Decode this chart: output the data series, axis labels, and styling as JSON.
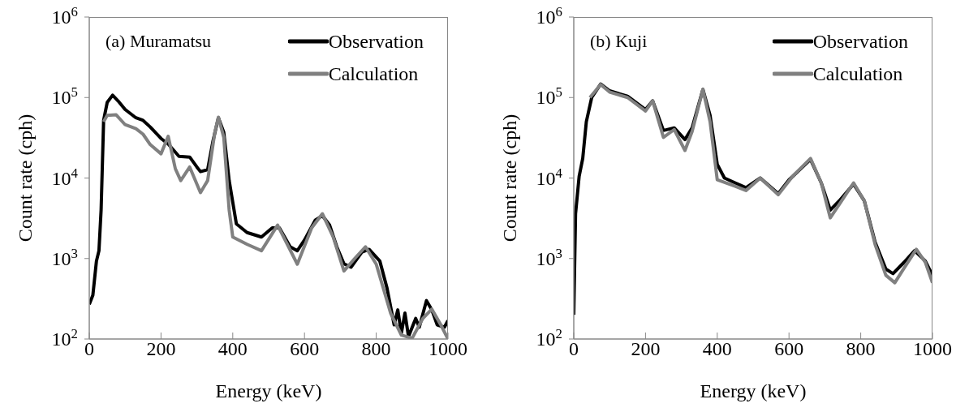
{
  "chart_data": [
    {
      "type": "line",
      "title": "(a) Muramatsu",
      "xlabel": "Energy (keV)",
      "ylabel": "Count rate (cph)",
      "log": "y",
      "legend": "top right",
      "grid": false,
      "xlim": [
        0,
        1000
      ],
      "xticks": [
        0,
        200,
        400,
        600,
        800,
        1000
      ],
      "ylim": [
        100,
        1000000
      ],
      "yticks": [
        {
          "value": 100,
          "label": "10$^{2}$"
        },
        {
          "value": 1000,
          "label": "10$^{3}$"
        },
        {
          "value": 10000,
          "label": "10$^{4}$"
        },
        {
          "value": 100000,
          "label": "10$^{5}$"
        },
        {
          "value": 1000000,
          "label": "10$^{6}$"
        }
      ],
      "series": [
        {
          "name": "Observation",
          "color": "#000000",
          "x": [
            0,
            10,
            20,
            27,
            33,
            40,
            50,
            65,
            80,
            100,
            130,
            150,
            170,
            200,
            220,
            250,
            280,
            300,
            310,
            330,
            345,
            360,
            375,
            390,
            410,
            440,
            480,
            510,
            530,
            560,
            580,
            600,
            630,
            650,
            670,
            690,
            710,
            730,
            760,
            780,
            810,
            830,
            850,
            860,
            870,
            880,
            890,
            910,
            920,
            940,
            955,
            970,
            990,
            1000
          ],
          "values": [
            270,
            350,
            930,
            1250,
            4000,
            52000,
            87000,
            107000,
            91000,
            71000,
            56000,
            52000,
            43000,
            31000,
            26500,
            18600,
            18200,
            13700,
            12000,
            12700,
            29000,
            56000,
            37000,
            9300,
            2700,
            2100,
            1850,
            2400,
            2400,
            1400,
            1250,
            1700,
            3000,
            3400,
            2600,
            1400,
            860,
            780,
            1200,
            1300,
            930,
            430,
            150,
            230,
            118,
            210,
            107,
            180,
            140,
            300,
            230,
            150,
            140,
            170
          ]
        },
        {
          "name": "Calculation",
          "color": "#808080",
          "x": [
            40,
            50,
            75,
            100,
            130,
            150,
            170,
            200,
            220,
            240,
            255,
            280,
            310,
            330,
            350,
            360,
            375,
            390,
            400,
            440,
            480,
            525,
            580,
            620,
            650,
            680,
            710,
            740,
            770,
            800,
            840,
            870,
            900,
            930,
            955,
            980,
            1000
          ],
          "values": [
            50000,
            60000,
            61000,
            46000,
            41000,
            35000,
            26000,
            20000,
            33000,
            13000,
            9300,
            13700,
            6600,
            9300,
            37000,
            57000,
            32000,
            4000,
            1850,
            1500,
            1250,
            2600,
            850,
            2400,
            3600,
            1850,
            700,
            1000,
            1400,
            850,
            210,
            112,
            102,
            180,
            235,
            150,
            100
          ]
        }
      ]
    },
    {
      "type": "line",
      "title": "(b) Kuji",
      "xlabel": "Energy (keV)",
      "ylabel": "Count rate (cph)",
      "log": "y",
      "legend": "top right",
      "grid": false,
      "xlim": [
        0,
        1000
      ],
      "xticks": [
        0,
        200,
        400,
        600,
        800,
        1000
      ],
      "ylim": [
        100,
        1000000
      ],
      "yticks": [
        {
          "value": 100,
          "label": "10$^{2}$"
        },
        {
          "value": 1000,
          "label": "10$^{3}$"
        },
        {
          "value": 10000,
          "label": "10$^{4}$"
        },
        {
          "value": 100000,
          "label": "10$^{5}$"
        },
        {
          "value": 1000000,
          "label": "10$^{6}$"
        }
      ],
      "series": [
        {
          "name": "Observation",
          "color": "#000000",
          "x": [
            0,
            5,
            15,
            25,
            35,
            50,
            75,
            100,
            150,
            200,
            220,
            250,
            280,
            310,
            330,
            360,
            380,
            400,
            420,
            450,
            480,
            520,
            570,
            600,
            660,
            690,
            715,
            740,
            780,
            810,
            840,
            870,
            890,
            920,
            950,
            980,
            1000
          ],
          "values": [
            200,
            3600,
            10500,
            17500,
            50000,
            100000,
            147000,
            121000,
            104000,
            71000,
            91000,
            39000,
            42000,
            30000,
            42000,
            126000,
            60000,
            14800,
            10000,
            8700,
            7600,
            10000,
            6400,
            9500,
            17000,
            8700,
            4000,
            5200,
            8400,
            5200,
            1600,
            740,
            650,
            890,
            1250,
            930,
            620
          ]
        },
        {
          "name": "Calculation",
          "color": "#808080",
          "x": [
            45,
            75,
            100,
            150,
            200,
            220,
            250,
            280,
            310,
            330,
            360,
            380,
            400,
            450,
            480,
            520,
            570,
            610,
            660,
            690,
            715,
            740,
            780,
            810,
            840,
            870,
            895,
            920,
            955,
            980,
            1000
          ],
          "values": [
            100000,
            145000,
            117000,
            100000,
            68000,
            91000,
            32000,
            40000,
            22000,
            38000,
            126000,
            50000,
            9500,
            7900,
            7000,
            10000,
            6200,
            10500,
            17500,
            8700,
            3200,
            4700,
            8700,
            5200,
            1500,
            620,
            500,
            750,
            1300,
            900,
            500
          ]
        }
      ]
    }
  ]
}
